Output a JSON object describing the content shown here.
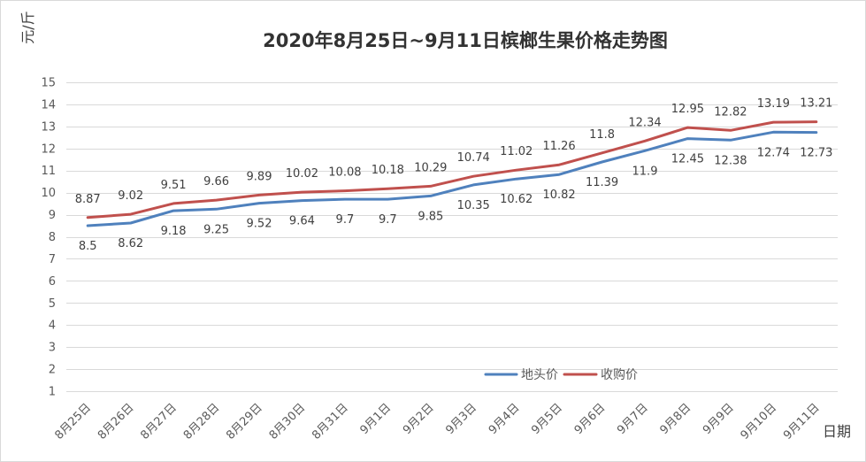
{
  "chart_data": {
    "type": "line",
    "title": "2020年8月25日~9月11日槟榔生果价格走势图",
    "ylabel": "元/斤",
    "xlabel": "日期",
    "categories": [
      "8月25日",
      "8月26日",
      "8月27日",
      "8月28日",
      "8月29日",
      "8月30日",
      "8月31日",
      "9月1日",
      "9月2日",
      "9月3日",
      "9月4日",
      "9月5日",
      "9月6日",
      "9月7日",
      "9月8日",
      "9月9日",
      "9月10日",
      "9月11日"
    ],
    "series": [
      {
        "name": "地头价",
        "color": "#4F81BD",
        "values": [
          8.5,
          8.62,
          9.18,
          9.25,
          9.52,
          9.64,
          9.7,
          9.7,
          9.85,
          10.35,
          10.62,
          10.82,
          11.39,
          11.9,
          12.45,
          12.38,
          12.74,
          12.73
        ]
      },
      {
        "name": "收购价",
        "color": "#C0504D",
        "values": [
          8.87,
          9.02,
          9.51,
          9.66,
          9.89,
          10.02,
          10.08,
          10.18,
          10.29,
          10.74,
          11.02,
          11.26,
          11.8,
          12.34,
          12.95,
          12.82,
          13.19,
          13.21
        ]
      }
    ],
    "ylim": [
      1,
      15
    ],
    "yticks": [
      1,
      2,
      3,
      4,
      5,
      6,
      7,
      8,
      9,
      10,
      11,
      12,
      13,
      14,
      15
    ],
    "grid": true,
    "legend_position": "bottom",
    "data_labels": true
  }
}
